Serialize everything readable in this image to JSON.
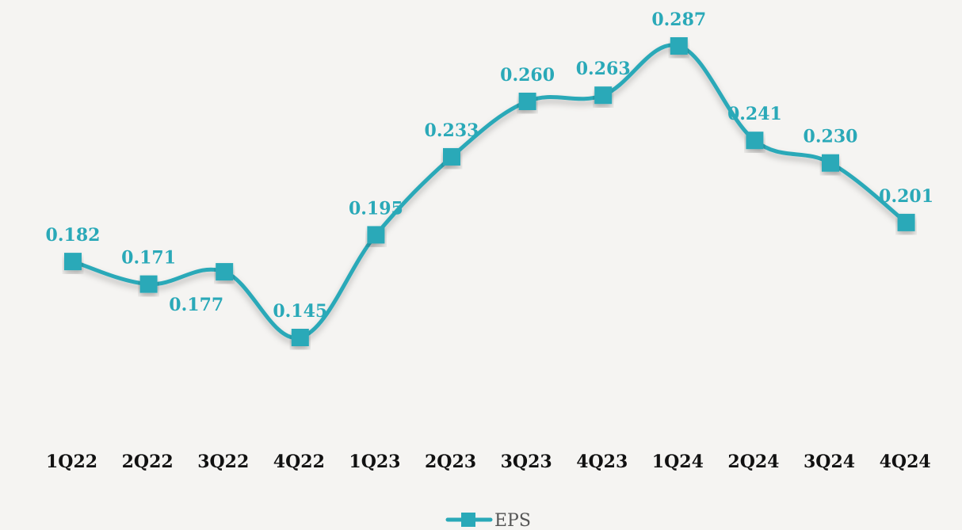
{
  "chart_data": {
    "type": "line",
    "title": "",
    "xlabel": "",
    "ylabel": "",
    "categories": [
      "1Q22",
      "2Q22",
      "3Q22",
      "4Q22",
      "1Q23",
      "2Q23",
      "3Q23",
      "4Q23",
      "1Q24",
      "2Q24",
      "3Q24",
      "4Q24"
    ],
    "series": [
      {
        "name": "EPS",
        "values": [
          0.182,
          0.171,
          0.177,
          0.145,
          0.195,
          0.233,
          0.26,
          0.263,
          0.287,
          0.241,
          0.23,
          0.201
        ],
        "labels": [
          "0.182",
          "0.171",
          "0.177",
          "0.145",
          "0.195",
          "0.233",
          "0.260",
          "0.263",
          "0.287",
          "0.241",
          "0.230",
          "0.201"
        ],
        "label_positions": [
          "above",
          "above",
          "below-left",
          "above",
          "above",
          "above",
          "above",
          "above",
          "above",
          "above",
          "above",
          "above"
        ]
      }
    ],
    "ylim": [
      0.13,
      0.3
    ],
    "grid": false,
    "legend": "bottom-center",
    "marker": "square",
    "smooth": true,
    "colors": {
      "line": "#2aa9b8",
      "marker": "#2aa9b8",
      "label": "#2aa9b8",
      "tick": "#111111",
      "background": "#f5f4f2"
    }
  }
}
